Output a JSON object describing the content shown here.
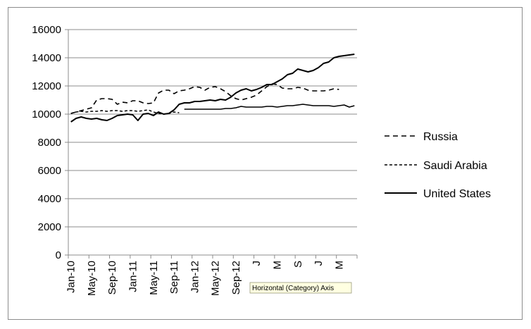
{
  "chart_data": {
    "type": "line",
    "title": "",
    "xlabel": "",
    "ylabel": "",
    "ylim": [
      0,
      16000
    ],
    "yticks": [
      0,
      2000,
      4000,
      6000,
      8000,
      10000,
      12000,
      14000,
      16000
    ],
    "grid": "horizontal",
    "legend_position": "right",
    "x": [
      "Jan-10",
      "Feb-10",
      "Mar-10",
      "Apr-10",
      "May-10",
      "Jun-10",
      "Jul-10",
      "Aug-10",
      "Sep-10",
      "Oct-10",
      "Nov-10",
      "Dec-10",
      "Jan-11",
      "Feb-11",
      "Mar-11",
      "Apr-11",
      "May-11",
      "Jun-11",
      "Jul-11",
      "Aug-11",
      "Sep-11",
      "Oct-11",
      "Nov-11",
      "Dec-11",
      "Jan-12",
      "Feb-12",
      "Mar-12",
      "Apr-12",
      "May-12",
      "Jun-12",
      "Jul-12",
      "Aug-12",
      "Sep-12",
      "Oct-12",
      "Nov-12",
      "Dec-12",
      "Jan-13",
      "Feb-13",
      "Mar-13",
      "Apr-13",
      "May-13",
      "Jun-13",
      "Jul-13",
      "Aug-13",
      "Sep-13",
      "Oct-13",
      "Nov-13",
      "Dec-13",
      "Jan-14",
      "Feb-14",
      "Mar-14",
      "Apr-14",
      "May-14",
      "Jun-14",
      "Jul-14",
      "Aug-14"
    ],
    "x_tick_labels": [
      "Jan-10",
      "May-10",
      "Sep-10",
      "Jan-11",
      "May-11",
      "Sep-11",
      "Jan-12",
      "May-12",
      "Sep-12",
      "Jan-13",
      "May-13",
      "Sep-13",
      "Jan-14",
      "May-14"
    ],
    "x_tick_labels_display": [
      "Jan-10",
      "May-10",
      "Sep-10",
      "Jan-11",
      "May-11",
      "Sep-11",
      "Jan-12",
      "May-12",
      "Sep-12",
      "J",
      "M",
      "S",
      "J",
      "M"
    ],
    "series": [
      {
        "name": "Russia",
        "style": "dashed",
        "values": [
          10050,
          10150,
          10250,
          10350,
          10450,
          11000,
          11100,
          11100,
          11050,
          10700,
          10850,
          10800,
          10950,
          10950,
          10800,
          10750,
          10800,
          11500,
          11700,
          11700,
          11450,
          11650,
          11700,
          11800,
          11950,
          11900,
          11700,
          11900,
          11950,
          11800,
          11600,
          11300,
          11100,
          11000,
          11100,
          11200,
          11350,
          11650,
          11950,
          12150,
          12100,
          11850,
          11800,
          11800,
          11900,
          11850,
          11700,
          11650,
          11650,
          11650,
          11700,
          11800,
          11750,
          null,
          null,
          null
        ]
      },
      {
        "name": "Saudi Arabia",
        "style": "dotted",
        "values": [
          10050,
          10150,
          10200,
          10150,
          10200,
          10200,
          10250,
          10200,
          10250,
          10250,
          10200,
          10250,
          10250,
          10200,
          10250,
          10300,
          10150,
          10050,
          10000,
          10050,
          10150,
          10100,
          null,
          null,
          null,
          null,
          null,
          null,
          null,
          null,
          null,
          null,
          null,
          null,
          null,
          null,
          null,
          null,
          null,
          null,
          null,
          null,
          null,
          null,
          null,
          null,
          null,
          null,
          null,
          null,
          null,
          null,
          null,
          null,
          null,
          null
        ]
      },
      {
        "name": "United States",
        "style": "solid",
        "values": [
          9450,
          9700,
          9800,
          9700,
          9650,
          9700,
          9600,
          9550,
          9700,
          9900,
          9950,
          10000,
          9950,
          9550,
          10000,
          10050,
          9900,
          10150,
          10000,
          10050,
          10300,
          10700,
          10800,
          10800,
          10900,
          10900,
          10950,
          11000,
          10950,
          11050,
          11000,
          11200,
          11500,
          11700,
          11800,
          11650,
          11750,
          11900,
          12100,
          12100,
          12300,
          12500,
          12800,
          12900,
          13200,
          13100,
          13000,
          13100,
          13300,
          13600,
          13700,
          14000,
          14100,
          14150,
          14200,
          14250
        ]
      },
      {
        "name": "",
        "style": "solid-thin",
        "values": [
          null,
          null,
          null,
          null,
          null,
          null,
          null,
          null,
          null,
          null,
          null,
          null,
          null,
          null,
          null,
          null,
          null,
          null,
          null,
          null,
          null,
          null,
          10350,
          10350,
          10350,
          10350,
          10350,
          10350,
          10350,
          10350,
          10400,
          10400,
          10450,
          10550,
          10500,
          10500,
          10500,
          10500,
          10550,
          10550,
          10500,
          10550,
          10600,
          10600,
          10650,
          10700,
          10650,
          10600,
          10600,
          10600,
          10600,
          10550,
          10600,
          10650,
          10500,
          10600
        ]
      }
    ],
    "annotations": [
      {
        "text": "Horizontal (Category) Axis",
        "kind": "tooltip"
      }
    ]
  }
}
